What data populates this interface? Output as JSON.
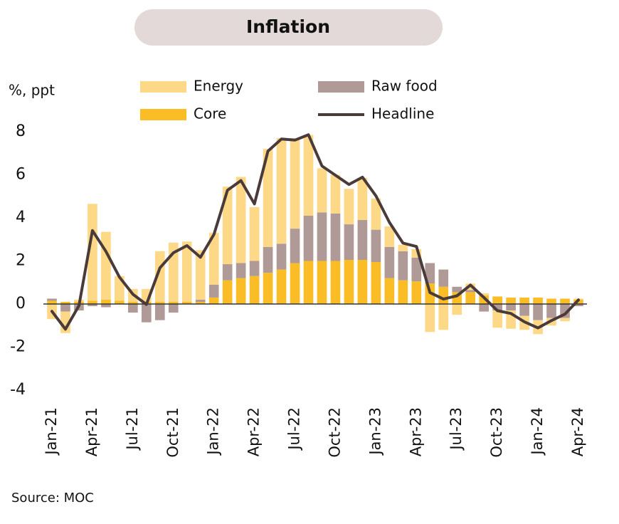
{
  "chart_data": {
    "type": "bar",
    "title": "Inflation",
    "y_label": "%, ppt",
    "source": "Source: MOC",
    "stacked": true,
    "categories": [
      "Jan-21",
      null,
      null,
      "Apr-21",
      null,
      null,
      "Jul-21",
      null,
      null,
      "Oct-21",
      null,
      null,
      "Jan-22",
      null,
      null,
      "Apr-22",
      null,
      null,
      "Jul-22",
      null,
      null,
      "Oct-22",
      null,
      null,
      "Jan-23",
      null,
      null,
      "Apr-23",
      null,
      null,
      "Jul-23",
      null,
      null,
      "Oct-23",
      null,
      null,
      "Jan-24",
      null,
      null,
      "Apr-24"
    ],
    "series": [
      {
        "name": "Core",
        "type": "bar",
        "color": "#fbbd26",
        "values": [
          0.15,
          0.1,
          0.1,
          0.15,
          0.2,
          0.15,
          0.1,
          0.1,
          0.1,
          0.1,
          0.1,
          0.1,
          0.3,
          1.1,
          1.2,
          1.3,
          1.45,
          1.6,
          1.9,
          2.0,
          2.0,
          2.0,
          2.05,
          2.05,
          1.95,
          1.2,
          1.1,
          1.05,
          0.95,
          0.8,
          0.55,
          0.55,
          0.4,
          0.35,
          0.3,
          0.3,
          0.3,
          0.25,
          0.25,
          0.2
        ]
      },
      {
        "name": "Raw food",
        "type": "bar",
        "color": "#b09a97",
        "values": [
          0.1,
          -0.35,
          -0.3,
          -0.1,
          -0.15,
          0.0,
          -0.4,
          -0.85,
          -0.75,
          -0.4,
          0.0,
          0.1,
          0.6,
          0.75,
          0.7,
          0.7,
          1.2,
          1.2,
          1.6,
          2.1,
          2.25,
          2.2,
          1.65,
          1.85,
          1.5,
          1.45,
          1.35,
          1.1,
          0.95,
          0.8,
          0.25,
          0.1,
          -0.35,
          -0.3,
          -0.3,
          -0.55,
          -0.75,
          -0.65,
          -0.65,
          -0.1
        ]
      },
      {
        "name": "Energy",
        "type": "bar",
        "color": "#fdd886",
        "values": [
          -0.7,
          -1.0,
          0.1,
          4.5,
          3.15,
          1.15,
          0.6,
          0.6,
          2.35,
          2.75,
          2.8,
          2.3,
          2.4,
          3.6,
          4.0,
          2.5,
          4.55,
          4.9,
          4.2,
          3.75,
          2.05,
          1.8,
          1.65,
          1.95,
          1.45,
          0.95,
          0.3,
          0.4,
          -1.3,
          -1.2,
          -0.5,
          0.3,
          0.1,
          -0.8,
          -0.85,
          -0.65,
          -0.65,
          -0.35,
          -0.15,
          0.05
        ]
      },
      {
        "name": "Headline",
        "type": "line",
        "color": "#4a3b3a",
        "values": [
          -0.34,
          -1.17,
          -0.08,
          3.41,
          2.44,
          1.25,
          0.45,
          -0.02,
          1.68,
          2.38,
          2.71,
          2.17,
          3.23,
          5.28,
          5.73,
          4.65,
          7.1,
          7.66,
          7.61,
          7.86,
          6.41,
          5.98,
          5.55,
          5.89,
          5.02,
          3.79,
          2.83,
          2.67,
          0.53,
          0.23,
          0.38,
          0.88,
          0.3,
          -0.31,
          -0.44,
          -0.83,
          -1.11,
          -0.77,
          -0.47,
          0.19
        ]
      }
    ],
    "ylim": [
      -4,
      8
    ],
    "yticks": [
      -4,
      -2,
      0,
      2,
      4,
      6,
      8
    ],
    "grid": false
  }
}
